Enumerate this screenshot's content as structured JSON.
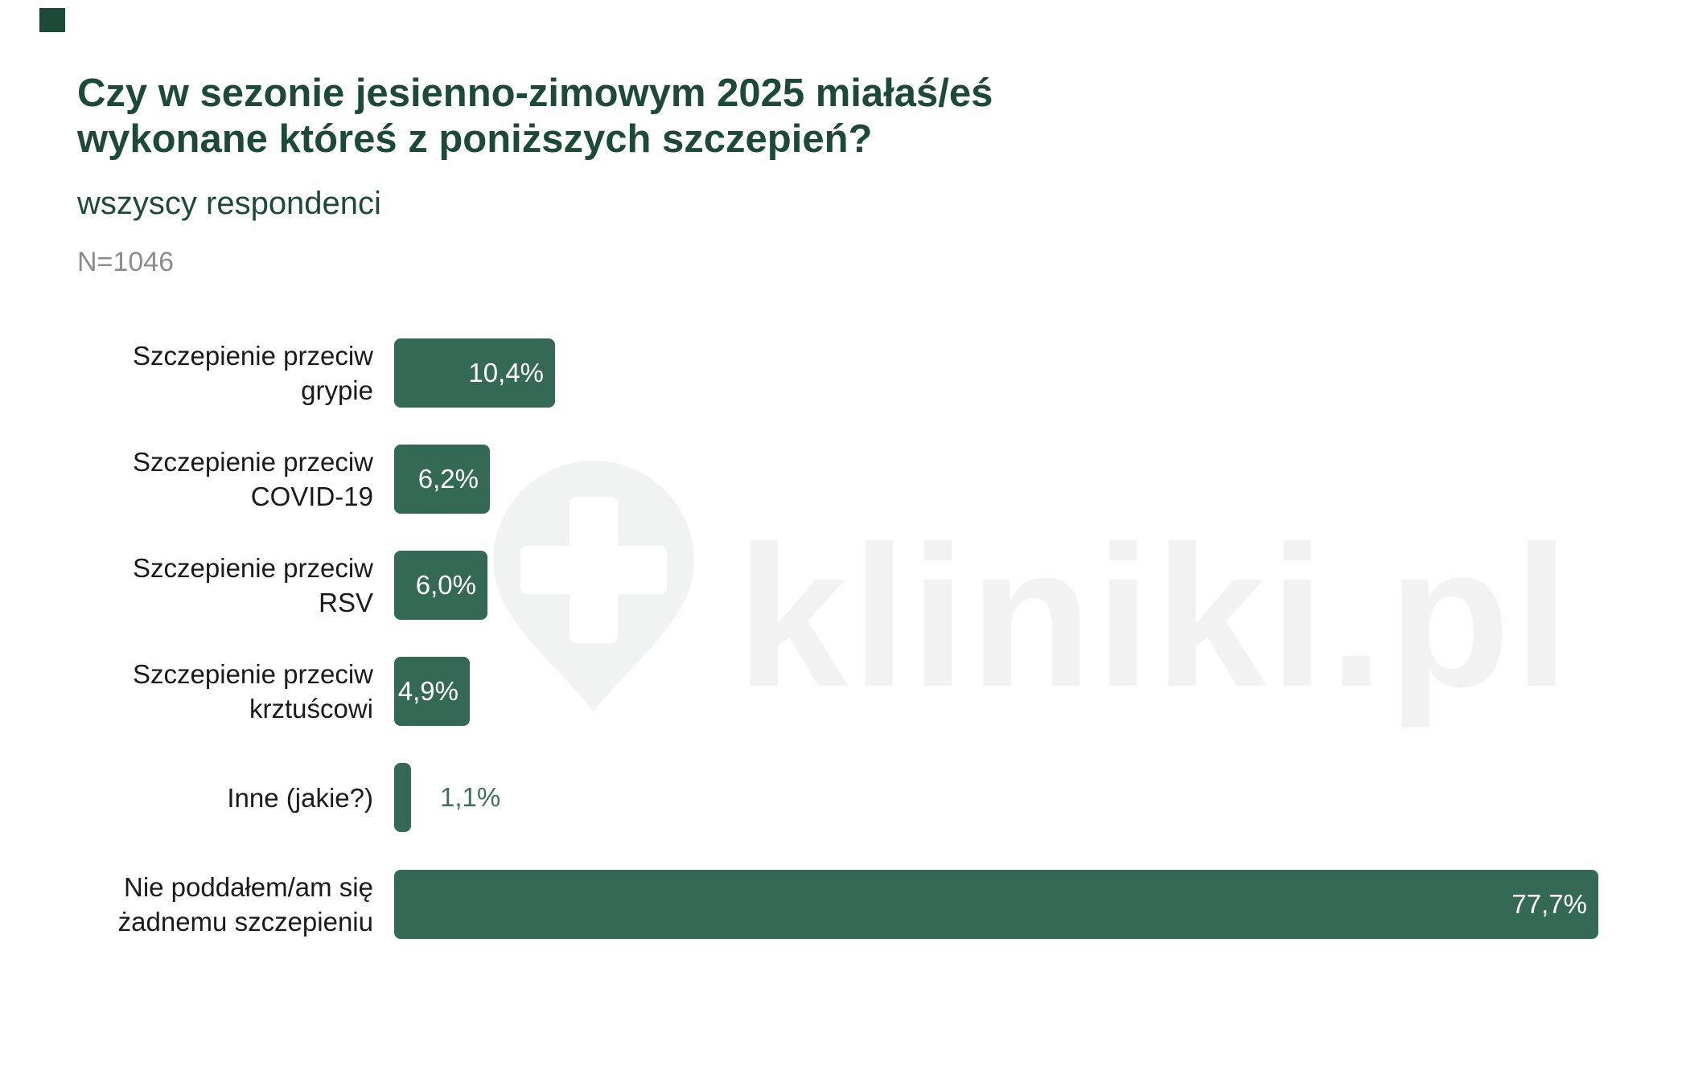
{
  "header": {
    "title_line1": "Czy w sezonie jesienno-zimowym 2025 miałaś/eś",
    "title_line2": "wykonane któreś z poniższych szczepień?",
    "subtitle": "wszyscy respondenci",
    "sample_size": "N=1046"
  },
  "chart_data": {
    "type": "bar",
    "orientation": "horizontal",
    "title": "Czy w sezonie jesienno-zimowym 2025 miałaś/eś wykonane któreś z poniższych szczepień?",
    "subtitle": "wszyscy respondenci",
    "sample_size": "N=1046",
    "xlabel": "",
    "ylabel": "",
    "xlim": [
      0,
      100
    ],
    "grid": false,
    "legend": false,
    "value_format": "percent-comma-decimal",
    "categories": [
      "Szczepienie przeciw grypie",
      "Szczepienie przeciw COVID-19",
      "Szczepienie przeciw RSV",
      "Szczepienie przeciw krztuścowi",
      "Inne (jakie?)",
      "Nie poddałem/am się żadnemu szczepieniu"
    ],
    "values": [
      10.4,
      6.2,
      6.0,
      4.9,
      1.1,
      77.7
    ],
    "rows": [
      {
        "label_lines": [
          "Szczepienie przeciw",
          "grypie"
        ],
        "value": 10.4,
        "value_label": "10,4%",
        "value_inside": true
      },
      {
        "label_lines": [
          "Szczepienie przeciw",
          "COVID-19"
        ],
        "value": 6.2,
        "value_label": "6,2%",
        "value_inside": true
      },
      {
        "label_lines": [
          "Szczepienie przeciw RSV"
        ],
        "value": 6.0,
        "value_label": "6,0%",
        "value_inside": true
      },
      {
        "label_lines": [
          "Szczepienie przeciw",
          "krztuścowi"
        ],
        "value": 4.9,
        "value_label": "4,9%",
        "value_inside": true
      },
      {
        "label_lines": [
          "Inne (jakie?)"
        ],
        "value": 1.1,
        "value_label": "1,1%",
        "value_inside": false
      },
      {
        "label_lines": [
          "Nie poddałem/am się",
          "żadnemu szczepieniu"
        ],
        "value": 77.7,
        "value_label": "77,7%",
        "value_inside": true
      }
    ]
  },
  "colors": {
    "bar": "#346956",
    "title": "#1D4A38",
    "category_label": "#1A1A1A",
    "value_inside": "#FFFFFF",
    "value_outside": "#3D7060",
    "sample_size": "#8C8C8C",
    "watermark": "#F2F2F2",
    "corner_square": "#1D4A38"
  },
  "watermark": {
    "text": "kliniki.pl",
    "icon": "location-pin-plus-icon"
  }
}
